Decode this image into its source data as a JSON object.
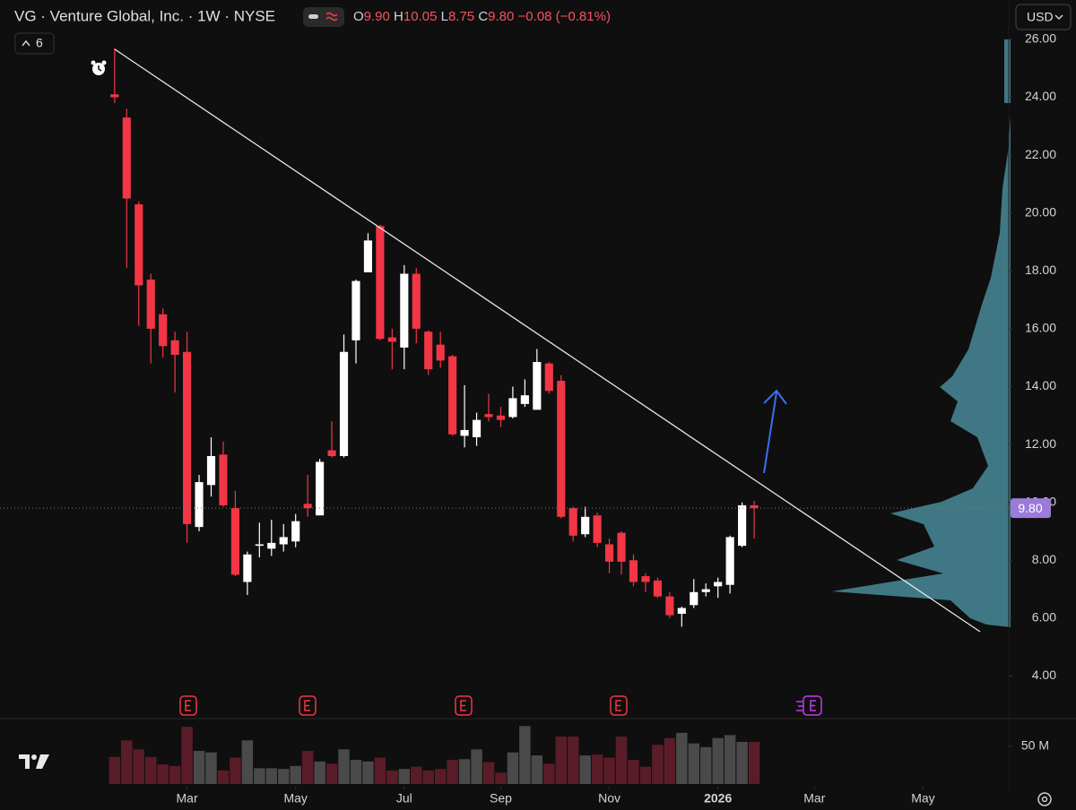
{
  "header": {
    "symbol": "VG · Venture Global, Inc. · 1W · NYSE",
    "open_label": "O",
    "open": "9.90",
    "high_label": "H",
    "high": "10.05",
    "low_label": "L",
    "low": "8.75",
    "close_label": "C",
    "close": "9.80",
    "change": "−0.08 (−0.81%)",
    "currency": "USD",
    "indicators": "6"
  },
  "chart_data": {
    "type": "candlestick",
    "up_color": "#ffffff",
    "down_color": "#f23645",
    "open": [
      24.1,
      23.3,
      20.3,
      17.7,
      16.5,
      15.6,
      15.2,
      9.15,
      10.6,
      11.65,
      9.8,
      7.25,
      8.5,
      8.4,
      8.55,
      8.65,
      9.95,
      9.55,
      11.8,
      11.6,
      15.6,
      17.95,
      19.55,
      15.7,
      15.35,
      17.9,
      15.9,
      15.45,
      15.05,
      12.3,
      12.25,
      13.05,
      13.0,
      12.95,
      13.4,
      13.2,
      14.8,
      14.2,
      9.8,
      8.9,
      9.55,
      8.55,
      8.95,
      8.0,
      7.45,
      7.3,
      6.75,
      6.15,
      6.45,
      6.9,
      7.1,
      7.15,
      8.5,
      9.9
    ],
    "high": [
      25.7,
      23.6,
      20.4,
      17.9,
      16.7,
      15.9,
      15.9,
      10.95,
      12.25,
      12.1,
      10.4,
      8.3,
      9.3,
      9.4,
      9.25,
      9.6,
      10.95,
      11.5,
      12.8,
      15.8,
      17.7,
      19.3,
      19.6,
      16.0,
      18.2,
      18.1,
      15.95,
      15.9,
      15.1,
      14.05,
      13.1,
      13.75,
      13.3,
      14.0,
      14.25,
      15.3,
      14.85,
      14.4,
      9.85,
      9.85,
      9.65,
      8.75,
      9.0,
      8.2,
      7.55,
      7.4,
      6.9,
      6.4,
      7.35,
      7.2,
      7.4,
      8.85,
      10.0,
      10.05
    ],
    "low": [
      23.8,
      18.1,
      16.1,
      14.8,
      15.0,
      13.8,
      8.6,
      9.0,
      10.2,
      9.85,
      7.45,
      6.8,
      8.1,
      8.15,
      8.3,
      8.45,
      9.5,
      9.55,
      11.55,
      11.55,
      14.8,
      17.95,
      15.6,
      14.6,
      14.6,
      15.5,
      14.4,
      14.65,
      12.3,
      11.9,
      11.95,
      12.8,
      12.6,
      12.9,
      13.3,
      13.2,
      13.75,
      9.45,
      8.65,
      8.8,
      8.45,
      7.55,
      7.5,
      7.1,
      6.9,
      6.7,
      6.0,
      5.7,
      6.35,
      6.75,
      6.7,
      6.85,
      8.45,
      8.75
    ],
    "close": [
      24.0,
      20.5,
      17.5,
      16.0,
      15.4,
      15.1,
      9.25,
      10.7,
      11.6,
      9.9,
      7.5,
      8.2,
      8.55,
      8.6,
      8.8,
      9.35,
      9.8,
      11.4,
      11.6,
      15.2,
      17.65,
      19.05,
      15.65,
      15.55,
      17.9,
      16.0,
      14.6,
      14.9,
      12.35,
      12.5,
      12.85,
      12.95,
      12.85,
      13.6,
      13.7,
      14.85,
      13.85,
      9.5,
      8.85,
      9.5,
      8.6,
      7.95,
      7.95,
      7.25,
      7.25,
      6.75,
      6.1,
      6.35,
      6.9,
      7.0,
      7.25,
      8.8,
      9.9,
      9.8
    ],
    "ylim": [
      2.59,
      27.36
    ],
    "yticks": [
      {
        "value": 4,
        "label": "4.00"
      },
      {
        "value": 6,
        "label": "6.00"
      },
      {
        "value": 8,
        "label": "8.00"
      },
      {
        "value": 10,
        "label": "10.00"
      },
      {
        "value": 12,
        "label": "12.00"
      },
      {
        "value": 14,
        "label": "14.00"
      },
      {
        "value": 16,
        "label": "16.00"
      },
      {
        "value": 18,
        "label": "18.00"
      },
      {
        "value": 20,
        "label": "20.00"
      },
      {
        "value": 22,
        "label": "22.00"
      },
      {
        "value": 24,
        "label": "24.00"
      },
      {
        "value": 26,
        "label": "26.00"
      }
    ],
    "xlim": [
      -9.5,
      74.1
    ],
    "xticks": [
      {
        "value": 6,
        "label": "Mar"
      },
      {
        "value": 15,
        "label": "May"
      },
      {
        "value": 24,
        "label": "Jul"
      },
      {
        "value": 32,
        "label": "Sep"
      },
      {
        "value": 41,
        "label": "Nov"
      },
      {
        "value": 50,
        "label": "2026"
      },
      {
        "value": 58,
        "label": "Mar"
      },
      {
        "value": 67,
        "label": "May"
      }
    ],
    "grid": false,
    "last_price": {
      "value": 9.8,
      "label": "9.80"
    },
    "last_price_color": "#9c7ad8",
    "volume": {
      "up_color": "#4a4a4a",
      "down_color": "#5a1c28",
      "values": [
        36,
        58,
        46,
        36,
        26,
        24,
        76,
        44,
        42,
        18,
        35,
        58,
        21,
        21,
        20,
        24,
        44,
        30,
        27,
        46,
        32,
        30,
        35,
        18,
        20,
        23,
        18,
        20,
        32,
        33,
        46,
        29,
        15,
        42,
        77,
        38,
        27,
        63,
        63,
        38,
        39,
        35,
        63,
        32,
        23,
        52,
        61,
        68,
        54,
        49,
        61,
        65,
        56,
        56
      ],
      "ylim": [
        0,
        84.5
      ],
      "yticks": [
        {
          "value": 50,
          "label": "50 M"
        }
      ]
    }
  }
}
